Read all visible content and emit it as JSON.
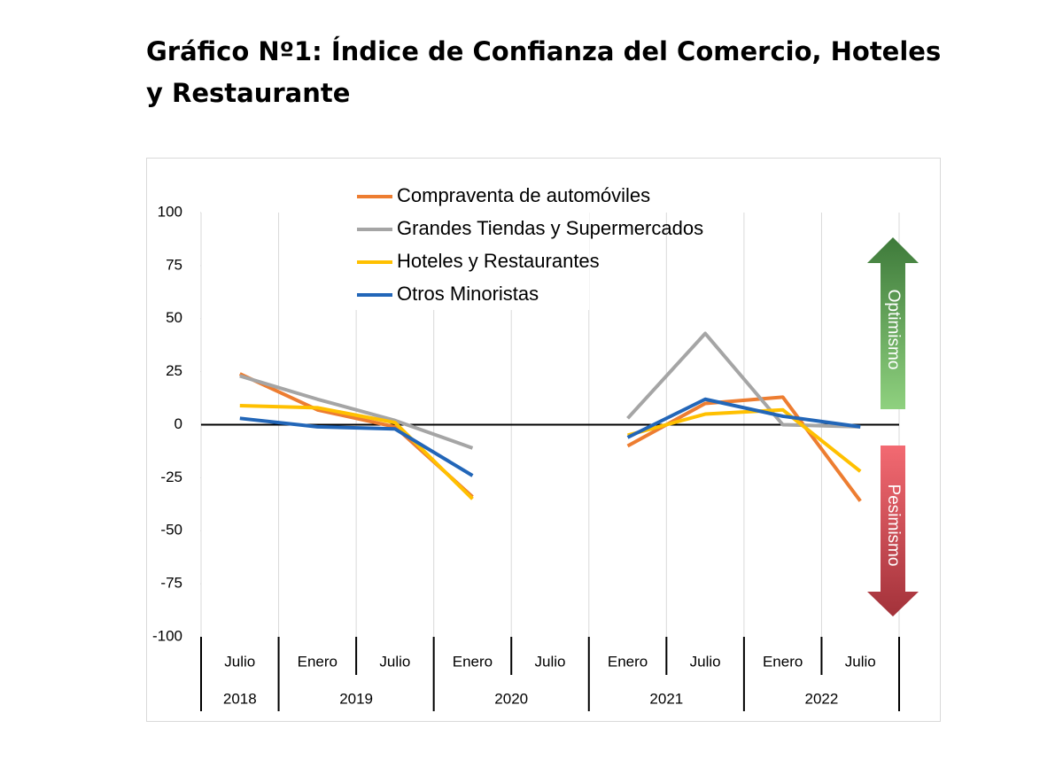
{
  "chart_data": {
    "type": "line",
    "title": [
      "Gráfico Nº1: Índice de Confianza del Comercio, Hoteles",
      "y Restaurante"
    ],
    "categories": [
      "Julio",
      "Enero",
      "Julio",
      "Enero",
      "Julio",
      "Enero",
      "Julio",
      "Enero",
      "Julio"
    ],
    "category_years": [
      "2018",
      "2019",
      null,
      "2020",
      null,
      "2021",
      null,
      "2022",
      null
    ],
    "series": [
      {
        "name": "Compraventa de automóviles",
        "color": "#ED7D31",
        "values": [
          24,
          7,
          -1,
          -34,
          null,
          -10,
          10,
          13,
          -36
        ]
      },
      {
        "name": "Grandes Tiendas y Supermercados",
        "color": "#A5A5A5",
        "values": [
          23,
          12,
          2,
          -11,
          null,
          3,
          43,
          0,
          -1
        ]
      },
      {
        "name": "Hoteles y Restaurantes",
        "color": "#FFC000",
        "values": [
          9,
          8,
          1,
          -35,
          null,
          -5,
          5,
          7,
          -22
        ]
      },
      {
        "name": "Otros Minoristas",
        "color": "#2266B8",
        "values": [
          3,
          -1,
          -2,
          -24,
          null,
          -6,
          12,
          4,
          -1
        ]
      }
    ],
    "ylim": [
      -100,
      100
    ],
    "yticks": [
      -100,
      -75,
      -50,
      -25,
      0,
      25,
      50,
      75,
      100
    ],
    "annotations": [
      "Optimismo",
      "Pesimismo"
    ]
  }
}
